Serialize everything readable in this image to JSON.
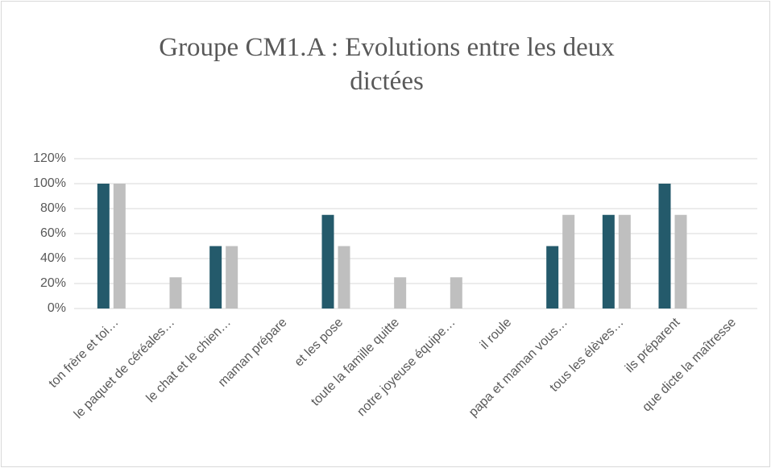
{
  "chart_data": {
    "type": "bar",
    "title": "Groupe CM1.A : Evolutions entre les deux dictées",
    "categories": [
      "ton frère et toi…",
      "le paquet de céréales…",
      "le chat et le chien…",
      "maman prépare",
      "et les pose",
      "toute la famille quitte",
      "notre joyeuse équipe…",
      "il roule",
      "papa et maman vous…",
      "tous les élèves…",
      "ils préparent",
      "que dicte la maîtresse"
    ],
    "series": [
      {
        "color": "#245a6b",
        "values": [
          100,
          0,
          50,
          0,
          75,
          0,
          0,
          0,
          50,
          75,
          100,
          0
        ]
      },
      {
        "color": "#bfbfbf",
        "values": [
          100,
          25,
          50,
          0,
          50,
          25,
          25,
          0,
          75,
          75,
          75,
          0
        ]
      }
    ],
    "ylim": [
      0,
      120
    ],
    "yticks": [
      {
        "value": 0,
        "label": "0%"
      },
      {
        "value": 20,
        "label": "20%"
      },
      {
        "value": 40,
        "label": "40%"
      },
      {
        "value": 60,
        "label": "60%"
      },
      {
        "value": 80,
        "label": "80%"
      },
      {
        "value": 100,
        "label": "100%"
      },
      {
        "value": 120,
        "label": "120%"
      }
    ],
    "grid": true
  }
}
